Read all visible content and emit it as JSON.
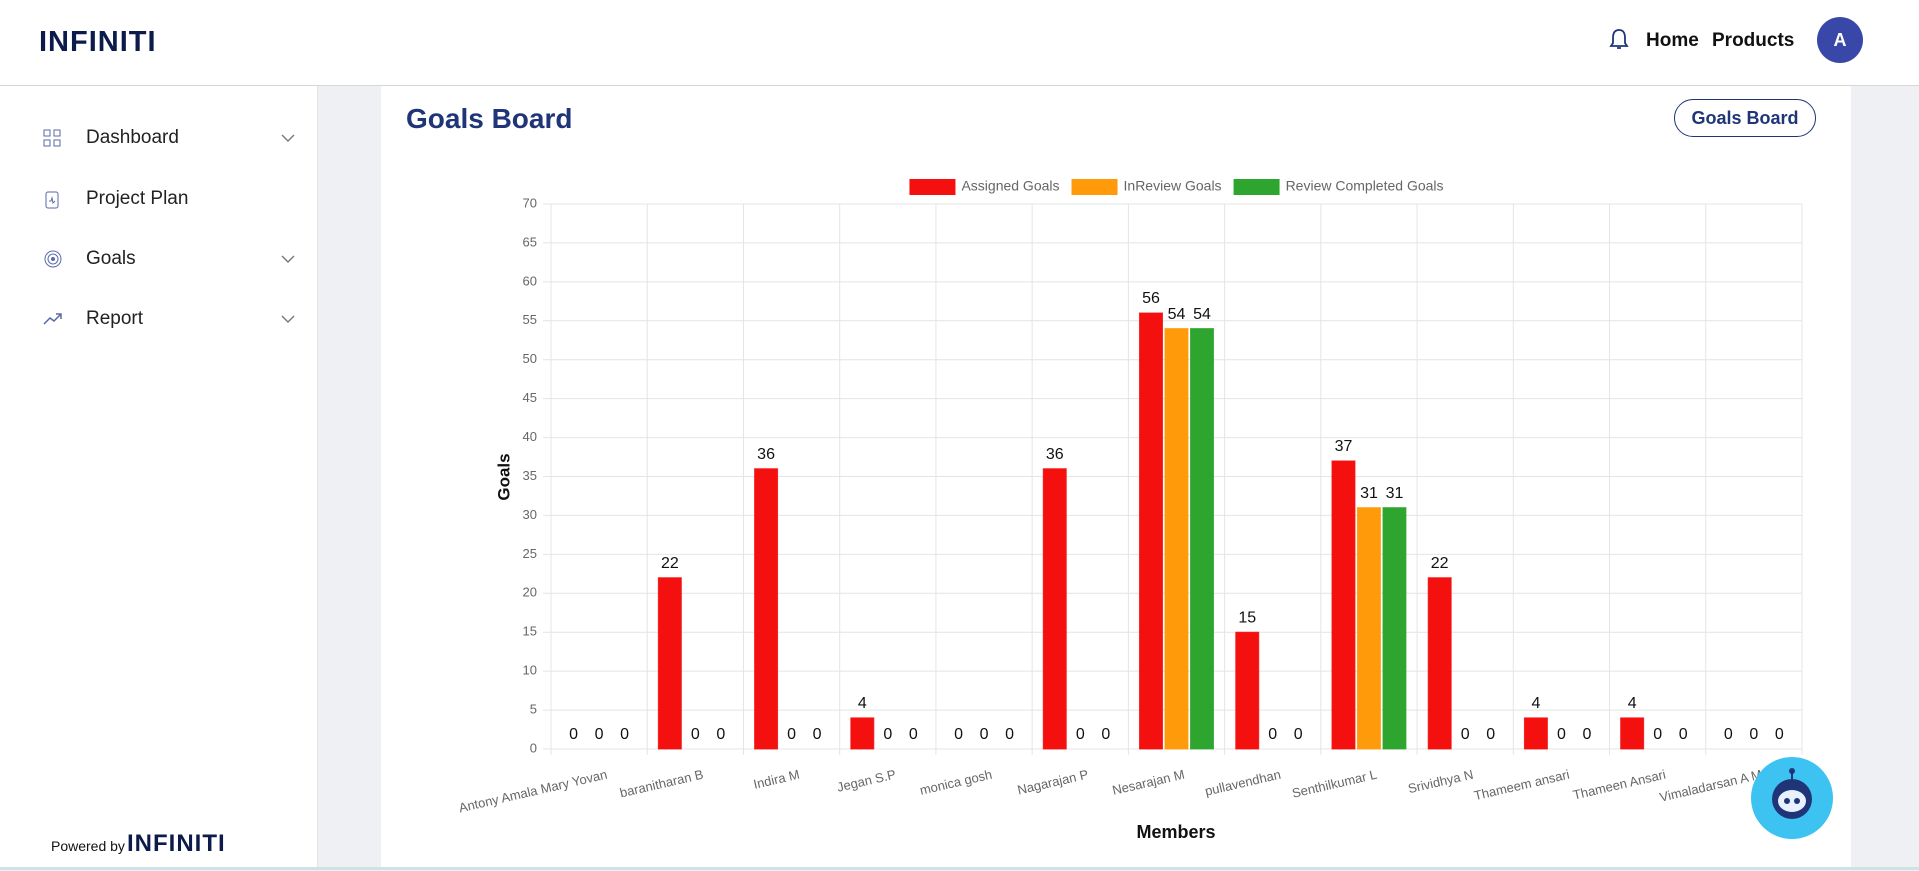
{
  "header": {
    "logo": "INFINITI",
    "nav": [
      "Home",
      "Products"
    ],
    "avatar": "A"
  },
  "sidebar": {
    "items": [
      "Dashboard",
      "Project Plan",
      "Goals",
      "Report"
    ],
    "powered_by": "Powered by",
    "footer_logo": "INFINITI"
  },
  "page": {
    "title": "Goals Board",
    "button": "Goals Board"
  },
  "chart_data": {
    "type": "bar",
    "x_label": "Members",
    "y_label": "Goals",
    "categories": [
      "Antony Amala Mary Yovan",
      "baranitharan B",
      "Indira M",
      "Jegan S.P",
      "monica gosh",
      "Nagarajan P",
      "Nesarajan M",
      "pullavendhan",
      "Senthilkumar L",
      "Srividhya N",
      "Thameem ansari",
      "Thameen Ansari",
      "Vimaladarsan A M"
    ],
    "series": [
      {
        "name": "Assigned Goals",
        "color": "#f51010",
        "values": [
          0,
          22,
          36,
          4,
          0,
          36,
          56,
          15,
          37,
          22,
          4,
          4,
          0
        ]
      },
      {
        "name": "InReview Goals",
        "color": "#ff9a0a",
        "values": [
          0,
          0,
          0,
          0,
          0,
          0,
          54,
          0,
          31,
          0,
          0,
          0,
          0
        ]
      },
      {
        "name": "Review Completed Goals",
        "color": "#2ea52e",
        "values": [
          0,
          0,
          0,
          0,
          0,
          0,
          54,
          0,
          31,
          0,
          0,
          0,
          0
        ]
      }
    ],
    "ylim": [
      0,
      70
    ],
    "yticks": [
      0,
      5,
      10,
      15,
      20,
      25,
      30,
      35,
      40,
      45,
      50,
      55,
      60,
      65,
      70
    ],
    "grid": true,
    "legend": "top"
  }
}
